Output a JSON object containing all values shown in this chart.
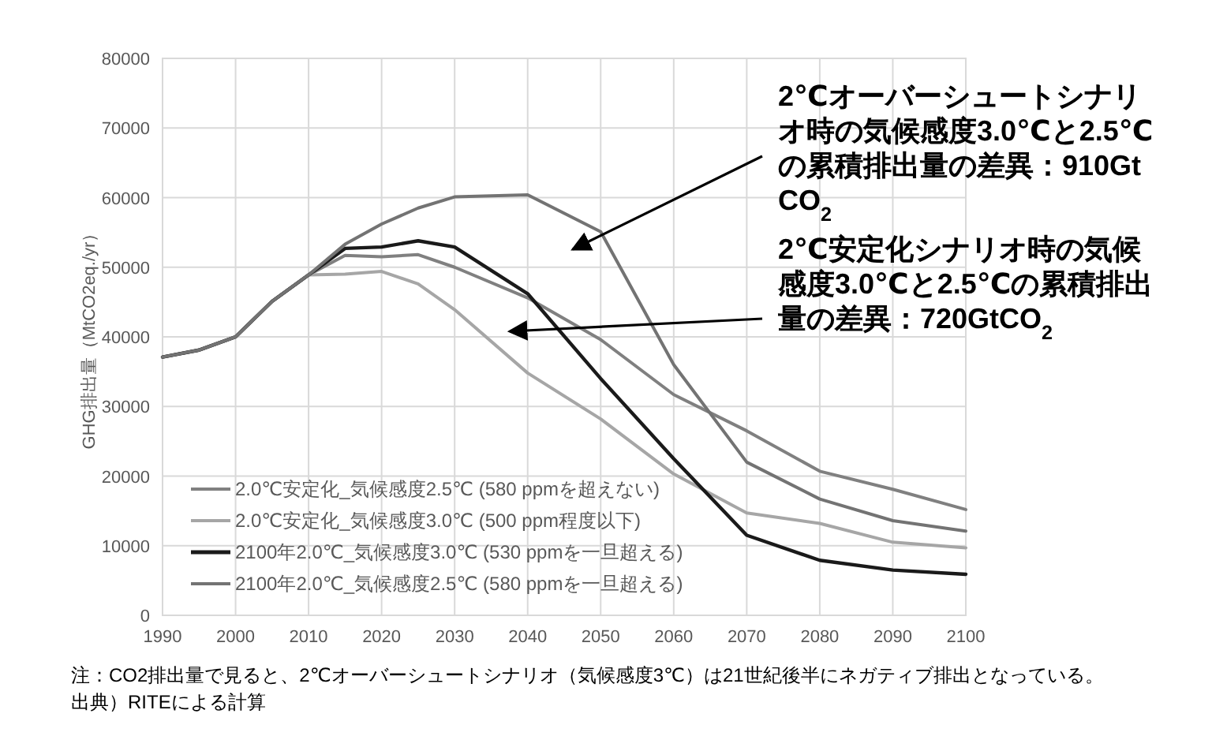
{
  "chart_data": {
    "type": "line",
    "ylabel": "GHG排出量（MtCO2eq./yr）",
    "x": [
      1990,
      1995,
      2000,
      2005,
      2010,
      2015,
      2020,
      2025,
      2030,
      2040,
      2050,
      2060,
      2070,
      2080,
      2090,
      2100
    ],
    "series": [
      {
        "name": "2.0℃安定化_気候感度2.5℃ (580 ppmを超えない)",
        "color": "#808080",
        "values": [
          37100,
          38100,
          40000,
          45100,
          48900,
          51700,
          51500,
          51800,
          50000,
          45600,
          39600,
          31700,
          26500,
          20700,
          18100,
          15200
        ]
      },
      {
        "name": "2.0℃安定化_気候感度3.0℃ (500 ppm程度以下)",
        "color": "#a6a6a6",
        "values": [
          37100,
          38100,
          40000,
          45100,
          48900,
          49000,
          49400,
          47600,
          43900,
          34800,
          28200,
          20300,
          14700,
          13200,
          10500,
          9700
        ]
      },
      {
        "name": "2100年2.0℃_気候感度3.0℃ (530 ppmを一旦超える)",
        "color": "#1a1a1a",
        "values": [
          37100,
          38100,
          40000,
          45100,
          48900,
          52700,
          52900,
          53800,
          52900,
          46200,
          34000,
          22500,
          11500,
          7900,
          6500,
          5900
        ]
      },
      {
        "name": "2100年2.0℃_気候感度2.5℃ (580 ppmを一旦超える)",
        "color": "#737373",
        "values": [
          37100,
          38100,
          40000,
          45100,
          48900,
          53300,
          56200,
          58500,
          60100,
          60400,
          55100,
          36000,
          22000,
          16700,
          13600,
          12100
        ]
      }
    ],
    "xlim": [
      1990,
      2100
    ],
    "xticks": [
      1990,
      2000,
      2010,
      2020,
      2030,
      2040,
      2050,
      2060,
      2070,
      2080,
      2090,
      2100
    ],
    "ylim": [
      0,
      80000
    ],
    "yticks": [
      0,
      10000,
      20000,
      30000,
      40000,
      50000,
      60000,
      70000,
      80000
    ],
    "grid": true,
    "legend": "bottom left",
    "marker": "none",
    "line_style": "solid",
    "annotations": [
      "2℃オーバーシュートシナリオ時の気候感度3.0℃と2.5℃の累積排出量の差異：910GtCO$_{2}$",
      "2℃安定化シナリオ時の気候感度3.0℃と2.5℃の累積排出量の差異：720GtCO$_{2}$",
      "注：CO2排出量で見ると、2℃オーバーシュートシナリオ（気候感度3℃）は21世紀後半にネガティブ排出となっている。",
      "出典）RITEによる計算"
    ]
  }
}
